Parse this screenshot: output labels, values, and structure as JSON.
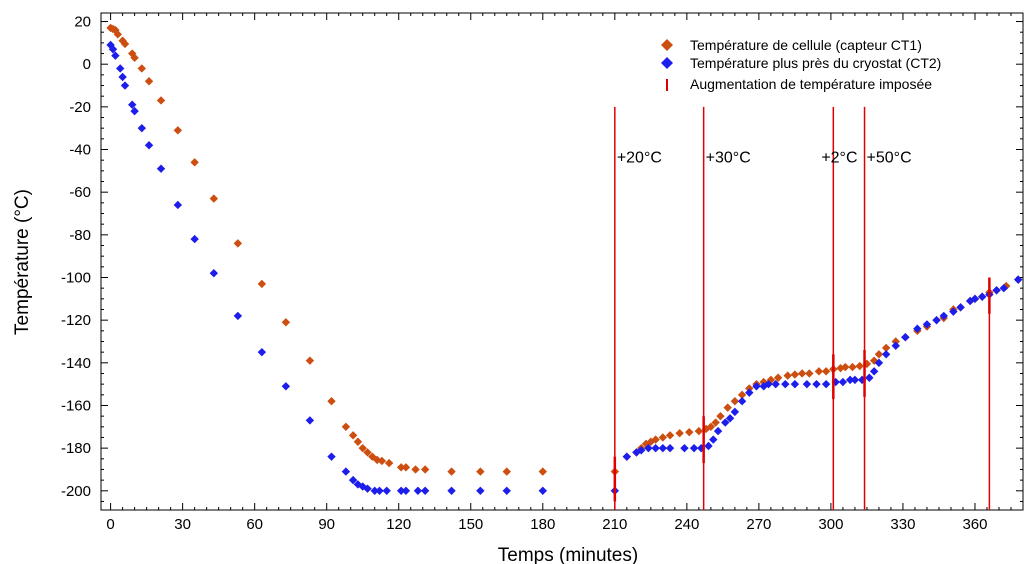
{
  "chart_data": {
    "type": "scatter",
    "title": "",
    "xlabel": "Temps (minutes)",
    "ylabel": "Température (°C)",
    "xlim": [
      -4,
      380
    ],
    "ylim": [
      -209,
      24
    ],
    "x_ticks": [
      0,
      30,
      60,
      90,
      120,
      150,
      180,
      210,
      240,
      270,
      300,
      330,
      360
    ],
    "y_ticks": [
      20,
      0,
      -20,
      -40,
      -60,
      -80,
      -100,
      -120,
      -140,
      -160,
      -180,
      -200
    ],
    "grid": false,
    "legend_position": "top-right",
    "series": [
      {
        "name": "Température de cellule (capteur CT1)",
        "marker": "diamond",
        "color": "#CC4E10",
        "points": [
          [
            0,
            17
          ],
          [
            1,
            16.5
          ],
          [
            2,
            16
          ],
          [
            3,
            14
          ],
          [
            5,
            11
          ],
          [
            6,
            9.5
          ],
          [
            9,
            5
          ],
          [
            10,
            3
          ],
          [
            13,
            -2
          ],
          [
            16,
            -8
          ],
          [
            21,
            -17
          ],
          [
            28,
            -31
          ],
          [
            35,
            -46
          ],
          [
            43,
            -63
          ],
          [
            53,
            -84
          ],
          [
            63,
            -103
          ],
          [
            73,
            -121
          ],
          [
            83,
            -139
          ],
          [
            92,
            -158
          ],
          [
            98,
            -170
          ],
          [
            101,
            -174
          ],
          [
            103,
            -177
          ],
          [
            105,
            -180
          ],
          [
            107,
            -182
          ],
          [
            109,
            -184
          ],
          [
            111,
            -185.5
          ],
          [
            113,
            -186
          ],
          [
            116,
            -187
          ],
          [
            121,
            -189
          ],
          [
            123,
            -189
          ],
          [
            127,
            -190
          ],
          [
            131,
            -190
          ],
          [
            142,
            -191
          ],
          [
            154,
            -191
          ],
          [
            165,
            -191
          ],
          [
            180,
            -191
          ],
          [
            210,
            -191
          ],
          [
            215,
            -184
          ],
          [
            219,
            -182
          ],
          [
            221,
            -180
          ],
          [
            223,
            -178
          ],
          [
            225,
            -177
          ],
          [
            227,
            -176
          ],
          [
            230,
            -175
          ],
          [
            233,
            -174
          ],
          [
            237,
            -173
          ],
          [
            241,
            -172.5
          ],
          [
            245,
            -172
          ],
          [
            248,
            -171
          ],
          [
            250,
            -170
          ],
          [
            252,
            -168
          ],
          [
            254,
            -165
          ],
          [
            257,
            -161
          ],
          [
            260,
            -158
          ],
          [
            263,
            -155
          ],
          [
            266,
            -152
          ],
          [
            269,
            -150
          ],
          [
            272,
            -149
          ],
          [
            275,
            -148
          ],
          [
            278,
            -147
          ],
          [
            282,
            -146
          ],
          [
            285,
            -145.5
          ],
          [
            288,
            -145
          ],
          [
            291,
            -145
          ],
          [
            295,
            -144
          ],
          [
            298,
            -144
          ],
          [
            301,
            -143
          ],
          [
            304,
            -142.5
          ],
          [
            306,
            -142
          ],
          [
            309,
            -142
          ],
          [
            312,
            -141.5
          ],
          [
            315,
            -140.5
          ],
          [
            318,
            -139
          ],
          [
            320,
            -136
          ],
          [
            323,
            -133
          ],
          [
            327,
            -130
          ],
          [
            331,
            -128
          ],
          [
            336,
            -125
          ],
          [
            340,
            -123
          ],
          [
            344,
            -120
          ],
          [
            347,
            -119
          ],
          [
            351,
            -115
          ],
          [
            354,
            -114
          ],
          [
            358,
            -111
          ],
          [
            360,
            -110
          ],
          [
            363,
            -109
          ],
          [
            366,
            -107
          ],
          [
            369,
            -106
          ],
          [
            373,
            -104
          ],
          [
            378,
            -101
          ]
        ]
      },
      {
        "name": "Température plus près du cryostat (CT2)",
        "marker": "diamond",
        "color": "#1E1EEB",
        "points": [
          [
            0,
            9
          ],
          [
            1,
            7
          ],
          [
            2,
            4
          ],
          [
            4,
            -2
          ],
          [
            5,
            -6
          ],
          [
            6,
            -10
          ],
          [
            9,
            -19
          ],
          [
            10,
            -22
          ],
          [
            13,
            -30
          ],
          [
            16,
            -38
          ],
          [
            21,
            -49
          ],
          [
            28,
            -66
          ],
          [
            35,
            -82
          ],
          [
            43,
            -98
          ],
          [
            53,
            -118
          ],
          [
            63,
            -135
          ],
          [
            73,
            -151
          ],
          [
            83,
            -167
          ],
          [
            92,
            -184
          ],
          [
            98,
            -191
          ],
          [
            101,
            -195
          ],
          [
            103,
            -197
          ],
          [
            105,
            -198
          ],
          [
            107,
            -199
          ],
          [
            110,
            -200
          ],
          [
            112,
            -200
          ],
          [
            115,
            -200
          ],
          [
            121,
            -200
          ],
          [
            123,
            -200
          ],
          [
            128,
            -200
          ],
          [
            131,
            -200
          ],
          [
            142,
            -200
          ],
          [
            154,
            -200
          ],
          [
            165,
            -200
          ],
          [
            180,
            -200
          ],
          [
            210,
            -200
          ],
          [
            215,
            -184
          ],
          [
            219,
            -182
          ],
          [
            221,
            -181
          ],
          [
            224,
            -180
          ],
          [
            227,
            -180
          ],
          [
            230,
            -180
          ],
          [
            233,
            -180
          ],
          [
            239,
            -180
          ],
          [
            243,
            -180
          ],
          [
            246,
            -180
          ],
          [
            249,
            -179
          ],
          [
            251,
            -176
          ],
          [
            253,
            -172
          ],
          [
            256,
            -168
          ],
          [
            258,
            -166
          ],
          [
            260,
            -163
          ],
          [
            263,
            -158
          ],
          [
            266,
            -154
          ],
          [
            269,
            -151
          ],
          [
            272,
            -151
          ],
          [
            274,
            -150
          ],
          [
            277,
            -150
          ],
          [
            281,
            -150
          ],
          [
            285,
            -150
          ],
          [
            290,
            -150
          ],
          [
            294,
            -150
          ],
          [
            298,
            -150
          ],
          [
            302,
            -149
          ],
          [
            305,
            -149
          ],
          [
            308,
            -148
          ],
          [
            310,
            -148
          ],
          [
            313,
            -148
          ],
          [
            316,
            -147
          ],
          [
            318,
            -144
          ],
          [
            320,
            -140
          ],
          [
            323,
            -136
          ],
          [
            327,
            -132
          ],
          [
            331,
            -128
          ],
          [
            336,
            -124
          ],
          [
            340,
            -122
          ],
          [
            344,
            -120
          ],
          [
            347,
            -118
          ],
          [
            351,
            -116
          ],
          [
            354,
            -114
          ],
          [
            358,
            -111
          ],
          [
            360,
            -110
          ],
          [
            363,
            -109
          ],
          [
            366,
            -108
          ],
          [
            369,
            -106
          ],
          [
            372,
            -105
          ],
          [
            378,
            -101
          ]
        ]
      },
      {
        "name": "Augmentation de température imposée",
        "marker": "vertical-line",
        "color": "#E00000",
        "events": [
          {
            "x": 210,
            "label": "+20°C",
            "tall": true
          },
          {
            "x": 247,
            "label": "+30°C",
            "tall": true
          },
          {
            "x": 301,
            "label": "+2°C",
            "tall": true
          },
          {
            "x": 314,
            "label": "+50°C",
            "tall": true
          },
          {
            "x": 366,
            "label": "",
            "tall": true
          }
        ]
      }
    ]
  }
}
